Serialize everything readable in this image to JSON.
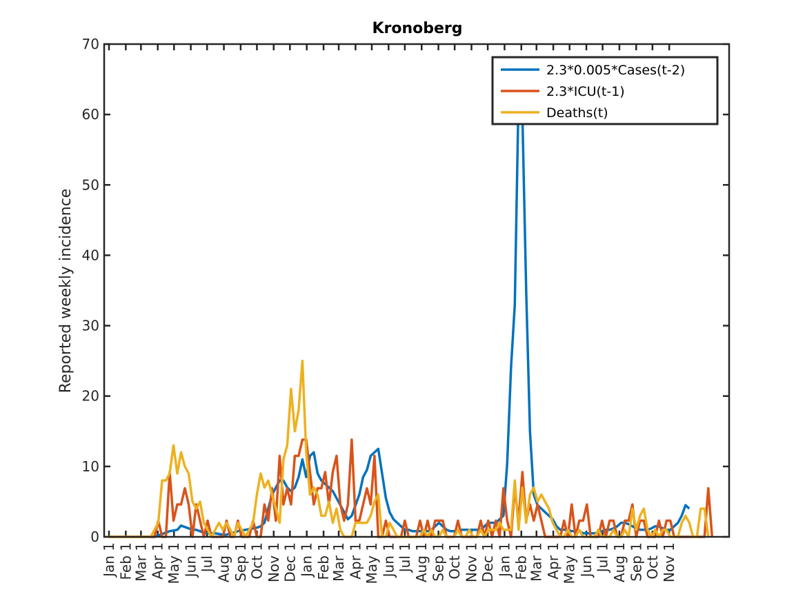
{
  "chart_data": {
    "type": "line",
    "title": "Kronoberg",
    "xlabel": "",
    "ylabel": "Reported weekly incidence",
    "ylim": [
      0,
      70
    ],
    "yticks": [
      0,
      10,
      20,
      30,
      40,
      50,
      60,
      70
    ],
    "grid": false,
    "legend_position": "top-right",
    "x_tick_labels": [
      "Jan 1",
      "Feb 1",
      "Mar 1",
      "Apr 1",
      "May 1",
      "Jun 1",
      "Jul 1",
      "Aug 1",
      "Sep 1",
      "Oct 1",
      "Nov 1",
      "Dec 1",
      "Jan 1",
      "Feb 1",
      "Mar 1",
      "Apr 1",
      "May 1",
      "Jun 1",
      "Jul 1",
      "Aug 1",
      "Sep 1",
      "Oct 1",
      "Nov 1",
      "Dec 1",
      "Jan 1",
      "Feb 1",
      "Mar 1",
      "Apr 1",
      "May 1",
      "Jun 1",
      "Jul 1",
      "Aug 1",
      "Sep 1",
      "Oct 1",
      "Nov 1"
    ],
    "x_tick_weeks": [
      0,
      4.43,
      8.43,
      12.86,
      17.14,
      21.57,
      25.86,
      30.29,
      34.71,
      39,
      43.43,
      47.71,
      52.14,
      56.57,
      60.57,
      65,
      69.29,
      73.71,
      78,
      82.43,
      86.86,
      91.14,
      95.57,
      99.86,
      104.29,
      108.71,
      112.71,
      117.14,
      121.43,
      125.86,
      130.14,
      134.57,
      139,
      143.29,
      147.71
    ],
    "x_range_weeks": [
      0,
      163.5
    ],
    "series": [
      {
        "name": "2.3*0.005*Cases(t-2)",
        "color": "#0072BD",
        "values": [
          0,
          0,
          0,
          0,
          0,
          0,
          0,
          0,
          0,
          0,
          0,
          0,
          0,
          0.2,
          0.4,
          0.6,
          0.8,
          0.9,
          1.0,
          1.6,
          1.4,
          1.2,
          1.0,
          1.0,
          0.8,
          0.6,
          0.5,
          0.5,
          0.5,
          0.4,
          0.3,
          0.3,
          0.5,
          0.6,
          0.8,
          0.9,
          1.0,
          1.1,
          1.2,
          1.3,
          1.5,
          2.0,
          4.0,
          6.0,
          7.0,
          8.0,
          8.0,
          7.0,
          6.5,
          7.0,
          8.5,
          11.0,
          8.5,
          11.5,
          12.0,
          9.0,
          8.0,
          7.5,
          7.0,
          6.5,
          5.5,
          4.5,
          3.5,
          2.5,
          3.0,
          4.5,
          6.0,
          8.5,
          9.5,
          11.5,
          12.0,
          12.5,
          9.0,
          5.5,
          3.5,
          2.5,
          2.0,
          1.5,
          1.0,
          1.0,
          0.8,
          0.8,
          0.8,
          0.8,
          0.8,
          1.0,
          1.5,
          2.0,
          1.5,
          1.0,
          0.8,
          0.8,
          1.0,
          1.0,
          1.0,
          1.0,
          1.0,
          1.0,
          1.0,
          1.5,
          2.0,
          2.0,
          2.0,
          2.5,
          3.0,
          10.5,
          24.0,
          33.0,
          63.0,
          60.0,
          35.0,
          15.0,
          6.0,
          4.5,
          4.0,
          3.5,
          3.0,
          2.5,
          1.5,
          1.0,
          1.0,
          1.0,
          0.8,
          0.8,
          0.8,
          0.5,
          0.5,
          0.5,
          0.5,
          0.6,
          0.8,
          1.0,
          1.0,
          1.2,
          1.5,
          2.0,
          2.0,
          1.8,
          1.5,
          1.2,
          1.0,
          1.0,
          1.0,
          1.2,
          1.5,
          1.5,
          1.2,
          1.0,
          1.0,
          1.5,
          2.0,
          3.0,
          4.5,
          4.0
        ]
      },
      {
        "name": "2.3*ICU(t-1)",
        "color": "#D95319",
        "values": [
          0,
          0,
          0,
          0,
          0,
          0,
          0,
          0,
          0,
          0,
          0,
          0,
          0,
          2.3,
          0,
          0,
          9.2,
          2.3,
          4.6,
          4.6,
          6.9,
          4.6,
          0,
          4.6,
          2.3,
          0,
          2.3,
          0,
          0,
          0,
          0,
          2.3,
          0,
          0,
          2.3,
          0,
          0,
          0,
          2.3,
          0,
          0,
          4.6,
          2.3,
          6.9,
          2.3,
          11.5,
          4.6,
          6.9,
          4.6,
          11.5,
          11.5,
          13.8,
          13.8,
          9.2,
          4.6,
          6.9,
          6.9,
          9.2,
          4.6,
          9.2,
          11.5,
          4.6,
          2.3,
          4.6,
          13.8,
          2.3,
          2.3,
          4.6,
          6.9,
          4.6,
          11.5,
          0,
          0,
          2.3,
          0,
          0,
          0,
          0,
          2.3,
          0,
          0,
          0,
          2.3,
          0,
          2.3,
          0,
          2.3,
          2.3,
          2.3,
          0,
          0,
          0,
          2.3,
          0,
          0,
          0,
          0,
          0,
          2.3,
          0,
          2.3,
          0,
          2.3,
          0,
          6.9,
          2.3,
          0,
          6.9,
          2.3,
          9.2,
          2.3,
          4.6,
          2.3,
          4.6,
          2.3,
          0,
          0,
          0,
          0,
          0,
          2.3,
          0,
          4.6,
          0,
          2.3,
          2.3,
          4.6,
          0,
          0,
          0,
          2.3,
          0,
          2.3,
          2.3,
          0,
          0,
          2.3,
          2.3,
          4.6,
          0,
          2.3,
          2.3,
          0,
          0,
          0,
          2.3,
          0,
          2.3,
          2.3,
          0,
          0,
          0,
          0,
          0,
          0,
          0,
          0,
          0,
          6.9,
          0
        ]
      },
      {
        "name": "Deaths(t)",
        "color": "#EDB120",
        "values": [
          0,
          0,
          0,
          0,
          0,
          0,
          0,
          0,
          0,
          0,
          0,
          0,
          1,
          2,
          8,
          8,
          9,
          13,
          9,
          12,
          10,
          9,
          5,
          4,
          5,
          2,
          1,
          0,
          1,
          2,
          1,
          2,
          1,
          0,
          2,
          1,
          0,
          1,
          2,
          6,
          9,
          7,
          8,
          6,
          4,
          2,
          11,
          13,
          21,
          15,
          18,
          25,
          12,
          6,
          7,
          6,
          3,
          3,
          5,
          2,
          4,
          1,
          0,
          0,
          0,
          2,
          2,
          2,
          2,
          3,
          5,
          6,
          0,
          0,
          2,
          1,
          0,
          0,
          0,
          0,
          0,
          0,
          0,
          1,
          0,
          1,
          0,
          0,
          1,
          0,
          0,
          0,
          1,
          0,
          0,
          1,
          0,
          0,
          1,
          0,
          1,
          1,
          1,
          2,
          1,
          1,
          1,
          8,
          1,
          7,
          2,
          6,
          7,
          5,
          6,
          5,
          4,
          2,
          1,
          0,
          0,
          1,
          0,
          0,
          1,
          0,
          0,
          0,
          0,
          1,
          0,
          0,
          0,
          1,
          0,
          0,
          1,
          0,
          4,
          1,
          3,
          4,
          1,
          0,
          1,
          0,
          1,
          1,
          0,
          0,
          0,
          2,
          3,
          2,
          0,
          0,
          4,
          4,
          0
        ]
      }
    ]
  }
}
